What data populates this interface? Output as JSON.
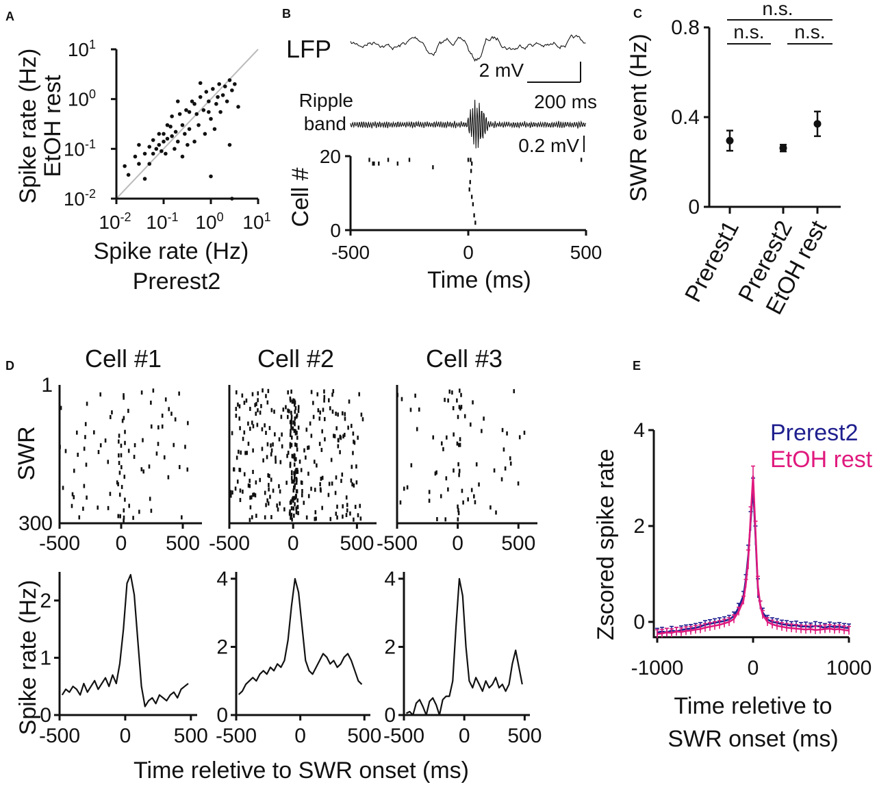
{
  "panels": {
    "a": "A",
    "b": "B",
    "c": "C",
    "d": "D",
    "e": "E"
  },
  "chart_data": [
    {
      "id": "A",
      "type": "scatter",
      "xlabel": "Spike rate (Hz)",
      "xlabel2": "Prerest2",
      "ylabel": "Spike rate (Hz)",
      "ylabel2": "EtOH rest",
      "xscale": "log",
      "yscale": "log",
      "xlim": [
        0.01,
        10
      ],
      "ylim": [
        0.01,
        10
      ],
      "ticks": [
        {
          "base": "10",
          "exp": "-2",
          "v": 0.01
        },
        {
          "base": "10",
          "exp": "-1",
          "v": 0.1
        },
        {
          "base": "10",
          "exp": "0",
          "v": 1
        },
        {
          "base": "10",
          "exp": "1",
          "v": 10
        }
      ],
      "identity_line": true,
      "points": [
        [
          0.015,
          0.045
        ],
        [
          0.025,
          0.07
        ],
        [
          0.03,
          0.05
        ],
        [
          0.04,
          0.08
        ],
        [
          0.05,
          0.11
        ],
        [
          0.06,
          0.08
        ],
        [
          0.06,
          0.15
        ],
        [
          0.07,
          0.1
        ],
        [
          0.08,
          0.12
        ],
        [
          0.09,
          0.09
        ],
        [
          0.1,
          0.14
        ],
        [
          0.1,
          0.2
        ],
        [
          0.11,
          0.08
        ],
        [
          0.12,
          0.16
        ],
        [
          0.14,
          0.28
        ],
        [
          0.15,
          0.18
        ],
        [
          0.17,
          0.1
        ],
        [
          0.18,
          0.22
        ],
        [
          0.2,
          0.14
        ],
        [
          0.22,
          0.5
        ],
        [
          0.25,
          0.3
        ],
        [
          0.28,
          0.2
        ],
        [
          0.3,
          0.6
        ],
        [
          0.32,
          0.12
        ],
        [
          0.35,
          0.25
        ],
        [
          0.4,
          0.9
        ],
        [
          0.45,
          0.14
        ],
        [
          0.5,
          0.5
        ],
        [
          0.55,
          0.3
        ],
        [
          0.6,
          1.1
        ],
        [
          0.7,
          0.6
        ],
        [
          0.75,
          0.2
        ],
        [
          0.8,
          1.4
        ],
        [
          0.9,
          0.9
        ],
        [
          1.0,
          0.4
        ],
        [
          1.1,
          1.6
        ],
        [
          1.2,
          0.25
        ],
        [
          1.3,
          0.8
        ],
        [
          1.5,
          2.0
        ],
        [
          1.6,
          0.55
        ],
        [
          1.8,
          1.2
        ],
        [
          2.0,
          1.8
        ],
        [
          2.2,
          0.9
        ],
        [
          2.5,
          2.4
        ],
        [
          2.8,
          1.5
        ],
        [
          3.2,
          2.0
        ],
        [
          3.8,
          0.7
        ],
        [
          0.03,
          0.12
        ],
        [
          0.05,
          0.05
        ],
        [
          0.12,
          0.3
        ],
        [
          0.2,
          0.9
        ],
        [
          0.35,
          0.55
        ],
        [
          0.08,
          0.2
        ],
        [
          0.04,
          0.025
        ],
        [
          1.0,
          0.028
        ],
        [
          2.5,
          0.12
        ],
        [
          2.8,
          0.01
        ],
        [
          0.25,
          0.07
        ],
        [
          0.45,
          0.8
        ],
        [
          0.15,
          0.45
        ],
        [
          1.4,
          1.1
        ],
        [
          0.6,
          2.1
        ],
        [
          0.9,
          0.55
        ],
        [
          0.018,
          0.03
        ]
      ]
    },
    {
      "id": "B",
      "type": "line",
      "lfp_label": "LFP",
      "ripple_label1": "Ripple",
      "ripple_label2": "band",
      "scale_v1": "2 mV",
      "scale_t": "200 ms",
      "scale_v2": "0.2 mV",
      "ylabel": "Cell #",
      "xlabel": "Time (ms)",
      "xlim": [
        -500,
        500
      ],
      "xticks": [
        "-500",
        "0",
        "500"
      ],
      "yticks": [
        "0",
        "20"
      ],
      "raster": [
        [
          -420,
          19
        ],
        [
          -405,
          18
        ],
        [
          -400,
          18
        ],
        [
          -380,
          18
        ],
        [
          -340,
          19
        ],
        [
          -300,
          18
        ],
        [
          -250,
          19
        ],
        [
          -150,
          17
        ],
        [
          0,
          19
        ],
        [
          10,
          19
        ],
        [
          15,
          18
        ],
        [
          12,
          16
        ],
        [
          8,
          13
        ],
        [
          5,
          11
        ],
        [
          15,
          9
        ],
        [
          20,
          7
        ],
        [
          25,
          4
        ],
        [
          30,
          2
        ],
        [
          480,
          19
        ]
      ]
    },
    {
      "id": "C",
      "type": "scatter",
      "ylabel": "SWR event (Hz)",
      "ylim": [
        0,
        0.8
      ],
      "yticks": [
        "0",
        "0.4",
        "0.8"
      ],
      "categories": [
        "Prerest1",
        "Prerest2",
        "EtOH rest"
      ],
      "means": [
        0.295,
        0.262,
        0.37
      ],
      "errors": [
        0.045,
        0.015,
        0.055
      ],
      "sig_labels": [
        "n.s.",
        "n.s.",
        "n.s."
      ]
    },
    {
      "id": "D",
      "type": "line",
      "cells": [
        {
          "title": "Cell #1",
          "rate": [
            0.35,
            0.45,
            0.4,
            0.5,
            0.45,
            0.35,
            0.55,
            0.4,
            0.5,
            0.6,
            0.45,
            0.55,
            0.65,
            0.5,
            0.7,
            0.55,
            0.9,
            1.5,
            2.3,
            2.45,
            2.1,
            1.3,
            0.5,
            0.15,
            0.25,
            0.3,
            0.2,
            0.35,
            0.3,
            0.25,
            0.35,
            0.4,
            0.3,
            0.45,
            0.5,
            0.55
          ],
          "ymax": 2.5,
          "yticks": [
            "0",
            "1",
            "2"
          ]
        },
        {
          "title": "Cell #2",
          "rate": [
            0.6,
            0.7,
            0.9,
            1.0,
            1.1,
            1.0,
            1.2,
            1.3,
            1.2,
            1.4,
            1.3,
            1.5,
            1.4,
            1.6,
            2.2,
            3.2,
            4.0,
            3.6,
            2.6,
            1.6,
            1.3,
            1.2,
            1.4,
            1.6,
            1.8,
            1.7,
            1.5,
            1.6,
            1.4,
            1.5,
            1.7,
            1.8,
            1.6,
            1.3,
            1.0,
            0.9
          ],
          "ymax": 4.2,
          "yticks": [
            "0",
            "2",
            "4"
          ]
        },
        {
          "title": "Cell #3",
          "rate": [
            0.05,
            0.1,
            0.0,
            0.35,
            0.45,
            0.25,
            0.0,
            0.4,
            0.5,
            0.3,
            0.0,
            0.45,
            0.55,
            0.55,
            1.0,
            2.6,
            4.0,
            3.5,
            2.0,
            1.0,
            0.8,
            1.1,
            0.9,
            0.7,
            1.0,
            0.8,
            0.9,
            1.1,
            0.8,
            0.9,
            0.7,
            0.9,
            1.5,
            1.9,
            1.4,
            0.9
          ],
          "ymax": 4.2,
          "yticks": [
            "0",
            "2",
            "4"
          ]
        }
      ],
      "raster_ylabel": "SWR",
      "raster_yticks": [
        "1",
        "300"
      ],
      "rate_ylabel": "Spike rate (Hz)",
      "xlabel": "Time reletive to SWR onset (ms)",
      "xticks": [
        "-500",
        "0",
        "500"
      ]
    },
    {
      "id": "E",
      "type": "line",
      "ylabel": "Zscored spike rate",
      "xlabel1": "Time reletive to",
      "xlabel2": "SWR onset (ms)",
      "xlim": [
        -1000,
        1000
      ],
      "ylim": [
        -0.3,
        4
      ],
      "xticks": [
        "-1000",
        "0",
        "1000"
      ],
      "yticks": [
        "0",
        "2",
        "4"
      ],
      "series": [
        {
          "name": "Prerest2",
          "color": "#1f1f8f",
          "x": [
            -1000,
            -950,
            -900,
            -850,
            -800,
            -750,
            -700,
            -650,
            -600,
            -550,
            -500,
            -450,
            -400,
            -350,
            -300,
            -250,
            -200,
            -150,
            -100,
            -75,
            -50,
            -25,
            0,
            25,
            50,
            75,
            100,
            150,
            200,
            250,
            300,
            350,
            400,
            450,
            500,
            550,
            600,
            650,
            700,
            750,
            800,
            850,
            900,
            950,
            1000
          ],
          "y": [
            -0.22,
            -0.2,
            -0.22,
            -0.18,
            -0.2,
            -0.17,
            -0.15,
            -0.14,
            -0.12,
            -0.1,
            -0.06,
            -0.04,
            -0.02,
            0.0,
            0.02,
            0.05,
            0.12,
            0.3,
            0.55,
            0.9,
            1.4,
            2.1,
            2.8,
            1.8,
            0.7,
            0.35,
            0.2,
            0.05,
            0.0,
            -0.02,
            -0.05,
            -0.06,
            -0.08,
            -0.07,
            -0.1,
            -0.09,
            -0.11,
            -0.08,
            -0.1,
            -0.12,
            -0.09,
            -0.11,
            -0.1,
            -0.12,
            -0.13
          ]
        },
        {
          "name": "EtOH rest",
          "color": "#e0197d",
          "x": [
            -1000,
            -950,
            -900,
            -850,
            -800,
            -750,
            -700,
            -650,
            -600,
            -550,
            -500,
            -450,
            -400,
            -350,
            -300,
            -250,
            -200,
            -150,
            -100,
            -75,
            -50,
            -25,
            0,
            25,
            50,
            75,
            100,
            150,
            200,
            250,
            300,
            350,
            400,
            450,
            500,
            550,
            600,
            650,
            700,
            750,
            800,
            850,
            900,
            950,
            1000
          ],
          "y": [
            -0.25,
            -0.24,
            -0.22,
            -0.23,
            -0.2,
            -0.21,
            -0.19,
            -0.18,
            -0.16,
            -0.15,
            -0.12,
            -0.1,
            -0.08,
            -0.06,
            -0.03,
            0.0,
            0.06,
            0.22,
            0.45,
            0.8,
            1.3,
            2.2,
            3.05,
            1.9,
            0.75,
            0.35,
            0.15,
            0.0,
            -0.05,
            -0.08,
            -0.1,
            -0.12,
            -0.13,
            -0.14,
            -0.15,
            -0.16,
            -0.15,
            -0.17,
            -0.16,
            -0.15,
            -0.14,
            -0.16,
            -0.15,
            -0.17,
            -0.18
          ]
        }
      ]
    }
  ]
}
